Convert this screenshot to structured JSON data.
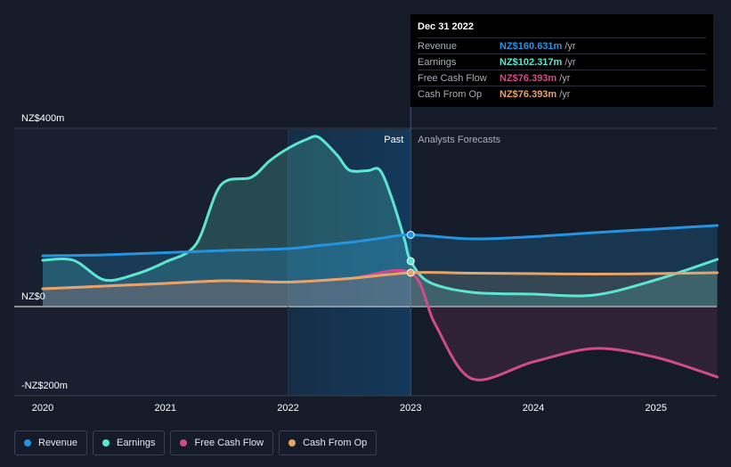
{
  "chart_data": {
    "type": "line",
    "y_axis": {
      "ylim": [
        -200,
        400
      ],
      "tick_labels": [
        "NZ$400m",
        "NZ$0",
        "-NZ$200m"
      ],
      "tick_values": [
        400,
        0,
        -200
      ]
    },
    "x_axis": {
      "xlim": [
        2019.8,
        2025.5
      ],
      "tick_labels": [
        "2020",
        "2021",
        "2022",
        "2023",
        "2024",
        "2025"
      ],
      "tick_values": [
        2020,
        2021,
        2022,
        2023,
        2024,
        2025
      ]
    },
    "divider": {
      "date": 2023.0,
      "past_label": "Past",
      "forecast_label": "Analysts Forecasts"
    },
    "series": [
      {
        "name": "Revenue",
        "color": "#2394df",
        "x": [
          2020.0,
          2020.5,
          2021.0,
          2021.5,
          2022.0,
          2022.25,
          2022.5,
          2022.75,
          2023.0,
          2023.5,
          2024.0,
          2024.5,
          2025.0,
          2025.5
        ],
        "y": [
          114,
          116,
          121,
          126,
          130,
          137,
          144,
          153,
          161,
          152,
          157,
          166,
          174,
          182
        ]
      },
      {
        "name": "Earnings",
        "color": "#5ee5d1",
        "x": [
          2020.0,
          2020.25,
          2020.5,
          2020.75,
          2021.0,
          2021.25,
          2021.45,
          2021.7,
          2021.85,
          2022.0,
          2022.15,
          2022.25,
          2022.4,
          2022.5,
          2022.65,
          2022.75,
          2022.85,
          2022.95,
          2023.0,
          2023.15,
          2023.5,
          2024.0,
          2024.5,
          2025.0,
          2025.5
        ],
        "y": [
          104,
          104,
          60,
          72,
          100,
          140,
          272,
          290,
          327,
          355,
          375,
          380,
          340,
          306,
          305,
          306,
          240,
          150,
          102,
          55,
          32,
          28,
          26,
          60,
          106
        ]
      },
      {
        "name": "Free Cash Flow",
        "color": "#d04b8c",
        "x": [
          2020.0,
          2020.5,
          2021.0,
          2021.5,
          2022.0,
          2022.5,
          2023.0,
          2023.2,
          2023.5,
          2024.0,
          2024.5,
          2025.0,
          2025.5
        ],
        "y": [
          40,
          46,
          52,
          58,
          55,
          63,
          76,
          -40,
          -162,
          -124,
          -94,
          -114,
          -158
        ]
      },
      {
        "name": "Cash From Op",
        "color": "#e5a56a",
        "x": [
          2020.0,
          2020.5,
          2021.0,
          2021.5,
          2022.0,
          2022.5,
          2023.0,
          2023.5,
          2024.0,
          2024.5,
          2025.0,
          2025.5
        ],
        "y": [
          40,
          46,
          52,
          58,
          55,
          63,
          76,
          75,
          74,
          73,
          74,
          76
        ]
      }
    ],
    "tooltip": {
      "date": "Dec 31 2022",
      "rows": [
        {
          "name": "Revenue",
          "value": "NZ$160.631m",
          "unit": "/yr",
          "color": "#2394df"
        },
        {
          "name": "Earnings",
          "value": "NZ$102.317m",
          "unit": "/yr",
          "color": "#5ee5d1"
        },
        {
          "name": "Free Cash Flow",
          "value": "NZ$76.393m",
          "unit": "/yr",
          "color": "#d04b8c"
        },
        {
          "name": "Cash From Op",
          "value": "NZ$76.393m",
          "unit": "/yr",
          "color": "#e5a56a"
        }
      ]
    }
  },
  "legend": [
    {
      "label": "Revenue",
      "color": "#2394df"
    },
    {
      "label": "Earnings",
      "color": "#5ee5d1"
    },
    {
      "label": "Free Cash Flow",
      "color": "#d04b8c"
    },
    {
      "label": "Cash From Op",
      "color": "#e5a56a"
    }
  ]
}
